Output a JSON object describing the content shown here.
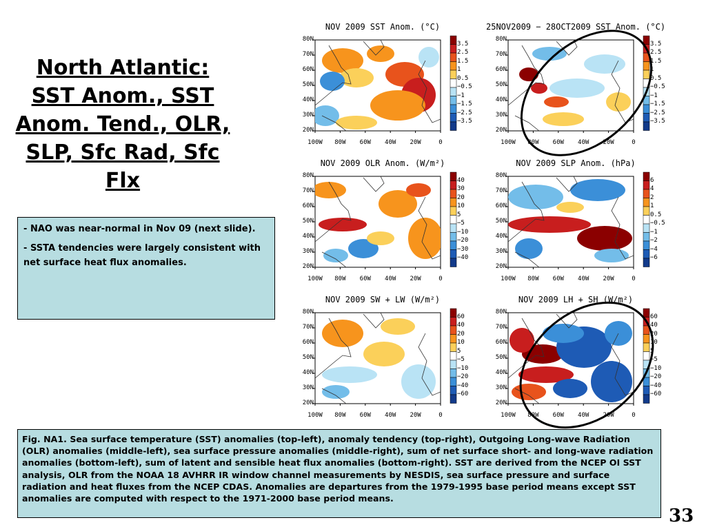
{
  "slide": {
    "title": "North Atlantic: SST Anom., SST Anom. Tend., OLR, SLP, Sfc Rad, Sfc Flx",
    "bullets": [
      {
        "dash": "-",
        "text": "NAO was near-normal in Nov 09 (next slide)."
      },
      {
        "dash": "-",
        "text": "SSTA tendencies were largely consistent with net surface heat flux anomalies."
      }
    ],
    "caption": "Fig. NA1. Sea surface temperature (SST) anomalies (top-left), anomaly tendency (top-right), Outgoing Long-wave Radiation (OLR) anomalies (middle-left), sea surface pressure anomalies (middle-right), sum of net surface short- and long-wave radiation anomalies (bottom-left), sum of latent and sensible heat flux anomalies (bottom-right). SST are derived from the NCEP OI SST analysis, OLR from the NOAA 18 AVHRR IR window channel measurements by NESDIS, sea surface pressure and surface radiation and heat fluxes from the NCEP CDAS. Anomalies are departures from the 1979-1995 base period means except SST anomalies are computed with respect to the 1971-2000 base period means.",
    "page_number": "33"
  },
  "maps": {
    "lat_labels": [
      "80N",
      "70N",
      "60N",
      "50N",
      "40N",
      "30N",
      "20N"
    ],
    "lon_labels": [
      "100W",
      "80W",
      "60W",
      "40W",
      "20W",
      "0"
    ],
    "panels": [
      {
        "title": "NOV 2009 SST Anom. (°C)",
        "levels": [
          "3.5",
          "2.5",
          "1.5",
          "1",
          "0.5",
          "−0.5",
          "−1",
          "−1.5",
          "−2.5",
          "−3.5"
        ],
        "circled": false
      },
      {
        "title": "25NOV2009 − 28OCT2009 SST Anom. (°C)",
        "levels": [
          "3.5",
          "2.5",
          "1.5",
          "1",
          "0.5",
          "−0.5",
          "−1",
          "−1.5",
          "−2.5",
          "−3.5"
        ],
        "circled": true
      },
      {
        "title": "NOV 2009 OLR Anom. (W/m²)",
        "levels": [
          "40",
          "30",
          "20",
          "10",
          "5",
          "−5",
          "−10",
          "−20",
          "−30",
          "−40"
        ],
        "circled": false
      },
      {
        "title": "NOV 2009 SLP Anom. (hPa)",
        "levels": [
          "6",
          "4",
          "2",
          "1",
          "0.5",
          "−0.5",
          "−1",
          "−2",
          "−4",
          "−6"
        ],
        "circled": false
      },
      {
        "title": "NOV 2009 SW + LW (W/m²)",
        "levels": [
          "60",
          "40",
          "20",
          "10",
          "5",
          "−5",
          "−10",
          "−20",
          "−40",
          "−60"
        ],
        "circled": false
      },
      {
        "title": "NOV 2009 LH + SH (W/m²)",
        "levels": [
          "60",
          "40",
          "20",
          "10",
          "5",
          "−5",
          "−10",
          "−20",
          "−40",
          "−60"
        ],
        "circled": true
      }
    ]
  },
  "colors": {
    "box_bg": "#b7dde1",
    "scale": [
      "#8b0000",
      "#c81e1e",
      "#e8531c",
      "#f7941d",
      "#fbd05a",
      "#ffffff",
      "#b9e3f5",
      "#73bde9",
      "#3b8fd8",
      "#1e5bb5",
      "#123a8a"
    ]
  }
}
